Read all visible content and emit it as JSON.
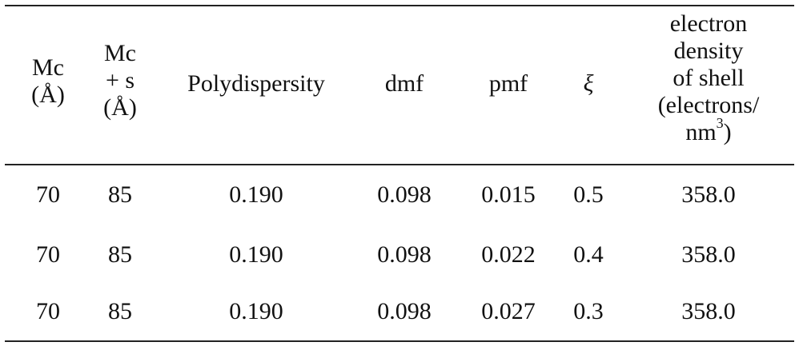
{
  "table": {
    "headers": {
      "mc": [
        "Mc",
        "(Å)"
      ],
      "mcs": [
        "Mc",
        "+ s",
        "(Å)"
      ],
      "poly": "Polydispersity",
      "dmf": "dmf",
      "pmf": "pmf",
      "xi": "ξ",
      "ed": [
        "electron",
        "density",
        "of shell",
        "(electrons/",
        "nm",
        "3",
        ")"
      ]
    },
    "rows": [
      [
        "70",
        "85",
        "0.190",
        "0.098",
        "0.015",
        "0.5",
        "358.0"
      ],
      [
        "70",
        "85",
        "0.190",
        "0.098",
        "0.022",
        "0.4",
        "358.0"
      ],
      [
        "70",
        "85",
        "0.190",
        "0.098",
        "0.027",
        "0.3",
        "358.0"
      ]
    ]
  }
}
